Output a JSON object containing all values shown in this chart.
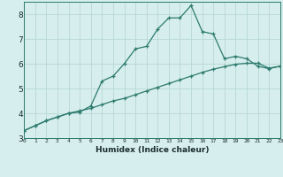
{
  "xlabel": "Humidex (Indice chaleur)",
  "bg_color": "#d6eeed",
  "grid_color": "#b8d8d4",
  "line_color": "#2d7a6e",
  "x_min": 0,
  "x_max": 23,
  "y_min": 3,
  "y_max": 8.5,
  "yticks": [
    3,
    4,
    5,
    6,
    7,
    8
  ],
  "series1_y": [
    3.3,
    3.5,
    3.7,
    3.85,
    4.0,
    4.05,
    4.3,
    5.3,
    5.5,
    6.0,
    6.6,
    6.7,
    7.4,
    7.85,
    7.85,
    8.35,
    7.3,
    7.2,
    6.2,
    6.3,
    6.2,
    5.9,
    5.8,
    5.9
  ],
  "series2_y": [
    3.3,
    3.5,
    3.7,
    3.85,
    4.0,
    4.1,
    4.2,
    4.35,
    4.5,
    4.6,
    4.75,
    4.9,
    5.05,
    5.2,
    5.35,
    5.5,
    5.65,
    5.78,
    5.88,
    5.98,
    6.02,
    6.02,
    5.82,
    5.9
  ]
}
